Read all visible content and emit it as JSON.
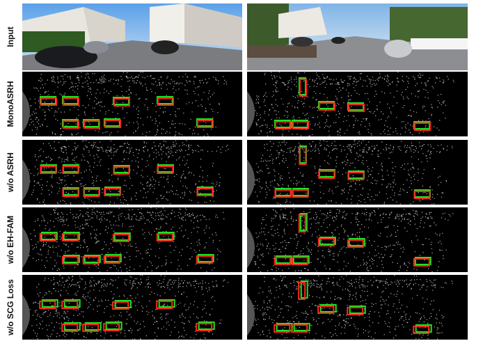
{
  "row_labels": [
    "Input",
    "MonoASRH",
    "w/o ASRH",
    "w/o EH-FAM",
    "w/o SCG Loss"
  ]
}
